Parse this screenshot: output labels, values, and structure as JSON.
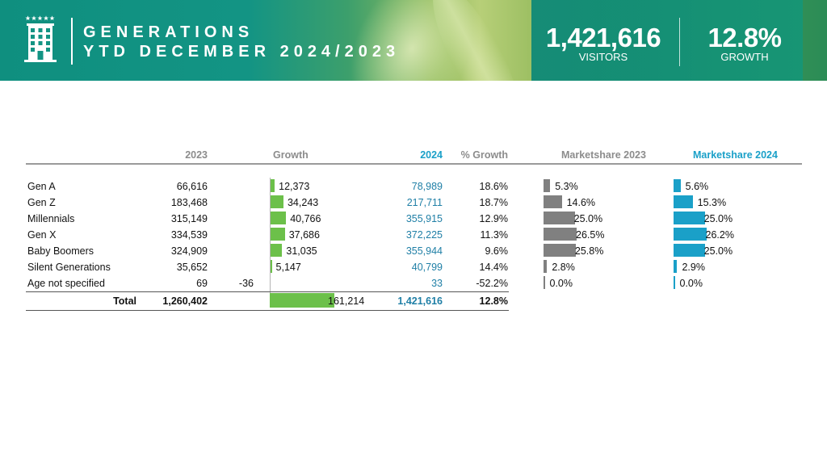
{
  "header": {
    "title_line1": "GENERATIONS",
    "title_line2": "YTD DECEMBER 2024/2023",
    "visitors_value": "1,421,616",
    "visitors_label": "VISITORS",
    "growth_value": "12.8%",
    "growth_label": "GROWTH",
    "icon": "hotel-building-icon",
    "colors": {
      "teal": "#0f8f7f",
      "white": "#ffffff"
    }
  },
  "chart_data": {
    "type": "table",
    "columns": [
      "",
      "2023",
      "Growth",
      "2024",
      "% Growth",
      "Marketshare 2023",
      "Marketshare 2024"
    ],
    "rows": [
      {
        "label": "Gen A",
        "y2023": "66,616",
        "growth": "12,373",
        "y2024": "78,989",
        "pct_growth": "18.6%",
        "ms2023": "5.3%",
        "ms2024": "5.6%",
        "growth_value": 12373,
        "ms2023_value": 5.3,
        "ms2024_value": 5.6
      },
      {
        "label": "Gen Z",
        "y2023": "183,468",
        "growth": "34,243",
        "y2024": "217,711",
        "pct_growth": "18.7%",
        "ms2023": "14.6%",
        "ms2024": "15.3%",
        "growth_value": 34243,
        "ms2023_value": 14.6,
        "ms2024_value": 15.3
      },
      {
        "label": "Millennials",
        "y2023": "315,149",
        "growth": "40,766",
        "y2024": "355,915",
        "pct_growth": "12.9%",
        "ms2023": "25.0%",
        "ms2024": "25.0%",
        "growth_value": 40766,
        "ms2023_value": 25.0,
        "ms2024_value": 25.0
      },
      {
        "label": "Gen X",
        "y2023": "334,539",
        "growth": "37,686",
        "y2024": "372,225",
        "pct_growth": "11.3%",
        "ms2023": "26.5%",
        "ms2024": "26.2%",
        "growth_value": 37686,
        "ms2023_value": 26.5,
        "ms2024_value": 26.2
      },
      {
        "label": "Baby Boomers",
        "y2023": "324,909",
        "growth": "31,035",
        "y2024": "355,944",
        "pct_growth": "9.6%",
        "ms2023": "25.8%",
        "ms2024": "25.0%",
        "growth_value": 31035,
        "ms2023_value": 25.8,
        "ms2024_value": 25.0
      },
      {
        "label": "Silent Generations",
        "y2023": "35,652",
        "growth": "5,147",
        "y2024": "40,799",
        "pct_growth": "14.4%",
        "ms2023": "2.8%",
        "ms2024": "2.9%",
        "growth_value": 5147,
        "ms2023_value": 2.8,
        "ms2024_value": 2.9
      },
      {
        "label": "Age not specified",
        "y2023": "69",
        "growth": "-36",
        "y2024": "33",
        "pct_growth": "-52.2%",
        "ms2023": "0.0%",
        "ms2024": "0.0%",
        "growth_value": -36,
        "ms2023_value": 0.0,
        "ms2024_value": 0.0
      }
    ],
    "total": {
      "label": "Total",
      "y2023": "1,260,402",
      "growth": "161,214",
      "y2024": "1,421,616",
      "pct_growth": "12.8%",
      "growth_value": 161214
    },
    "colors": {
      "growth_bar": "#6cc04a",
      "ms2023_bar": "#808080",
      "ms2024_bar": "#1aa0c8",
      "blue_text": "#1f7fa6"
    }
  }
}
